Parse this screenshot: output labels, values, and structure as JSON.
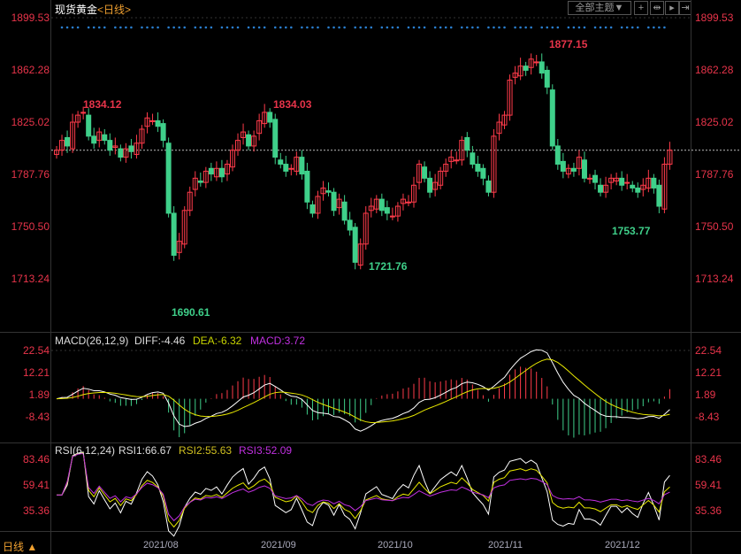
{
  "header": {
    "title": "现货黄金",
    "period": "<日线>",
    "theme_button": "全部主题▼",
    "tool_icons": [
      "crosshair-icon",
      "zoom-range-icon",
      "play-icon",
      "end-icon"
    ]
  },
  "main_axis": {
    "labels": [
      "1899.53",
      "1862.28",
      "1825.02",
      "1787.76",
      "1750.50",
      "1713.24"
    ],
    "values": [
      1899.53,
      1862.28,
      1825.02,
      1787.76,
      1750.5,
      1713.24
    ]
  },
  "annotations": [
    {
      "text": "1834.12",
      "color": "#e8344a"
    },
    {
      "text": "1690.61",
      "color": "#3fd08a"
    },
    {
      "text": "1834.03",
      "color": "#e8344a"
    },
    {
      "text": "1721.76",
      "color": "#3fd08a"
    },
    {
      "text": "1877.15",
      "color": "#e8344a"
    },
    {
      "text": "1753.77",
      "color": "#3fd08a"
    }
  ],
  "macd": {
    "title": "MACD(26,12,9)",
    "diff": "DIFF:-4.46",
    "dea": "DEA:-6.32",
    "macd": "MACD:3.72",
    "axis": [
      "22.54",
      "12.21",
      "1.89",
      "-8.43"
    ],
    "axis_values": [
      22.54,
      12.21,
      1.89,
      -8.43
    ]
  },
  "rsi": {
    "title": "RSI(6,12,24)",
    "rsi1": "RSI1:66.67",
    "rsi2": "RSI2:55.63",
    "rsi3": "RSI3:52.09",
    "axis": [
      "83.46",
      "59.41",
      "35.36"
    ],
    "axis_values": [
      83.46,
      59.41,
      35.36
    ]
  },
  "footer": {
    "period": "日线 ▲",
    "dates": [
      "2021/08",
      "2021/09",
      "2021/10",
      "2021/11",
      "2021/12"
    ]
  },
  "colors": {
    "up": "#ff3b4a",
    "down": "#3fd08a",
    "diff": "#ffffff",
    "dea": "#e8e800",
    "rsi3": "#c030e0"
  },
  "chart_data": {
    "type": "candlestick",
    "closes": [
      1805,
      1812,
      1808,
      1825,
      1830,
      1832,
      1815,
      1810,
      1818,
      1812,
      1805,
      1808,
      1800,
      1806,
      1804,
      1810,
      1820,
      1828,
      1826,
      1822,
      1812,
      1760,
      1730,
      1740,
      1762,
      1775,
      1785,
      1782,
      1790,
      1788,
      1792,
      1786,
      1795,
      1805,
      1812,
      1818,
      1808,
      1815,
      1826,
      1832,
      1825,
      1800,
      1795,
      1790,
      1792,
      1800,
      1788,
      1768,
      1760,
      1772,
      1778,
      1775,
      1762,
      1770,
      1755,
      1748,
      1725,
      1738,
      1760,
      1765,
      1770,
      1762,
      1760,
      1758,
      1765,
      1770,
      1768,
      1780,
      1795,
      1785,
      1775,
      1782,
      1790,
      1795,
      1800,
      1798,
      1812,
      1805,
      1795,
      1790,
      1785,
      1775,
      1815,
      1825,
      1830,
      1855,
      1860,
      1865,
      1862,
      1870,
      1868,
      1860,
      1850,
      1808,
      1795,
      1790,
      1792,
      1790,
      1800,
      1785,
      1785,
      1782,
      1775,
      1780,
      1785,
      1785,
      1780,
      1782,
      1778,
      1775,
      1780,
      1785,
      1778,
      1765,
      1795,
      1805
    ]
  }
}
